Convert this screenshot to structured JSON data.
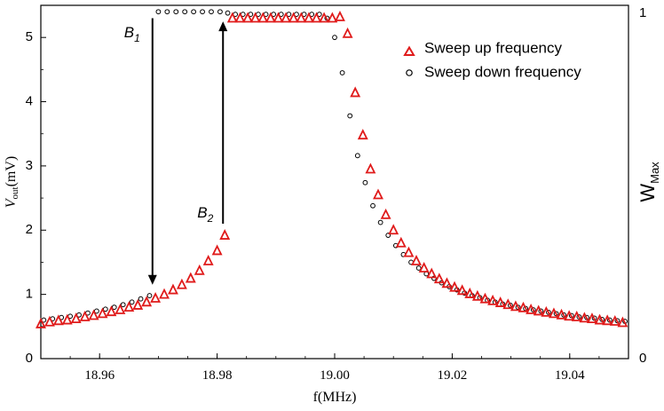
{
  "chart_data": {
    "type": "scatter",
    "xlabel": "f(MHz)",
    "ylabel_left": {
      "main": "V",
      "sub": "out",
      "unit": "(mV)"
    },
    "ylabel_right": {
      "main": "W",
      "sub": "Max"
    },
    "xlim": [
      18.95,
      19.05
    ],
    "ylim": [
      0,
      5.5
    ],
    "x_ticks": [
      18.96,
      18.98,
      19.0,
      19.02,
      19.04
    ],
    "x_tick_labels": [
      "18.96",
      "18.98",
      "19.00",
      "19.02",
      "19.04"
    ],
    "y_ticks": [
      0,
      1,
      2,
      3,
      4,
      5
    ],
    "y_tick_labels": [
      "0",
      "1",
      "2",
      "3",
      "4",
      "5"
    ],
    "right_ticks": [
      0,
      1
    ],
    "right_tick_labels": [
      "0",
      "1"
    ],
    "legend": {
      "position": "top-right",
      "entries": [
        "Sweep up frequency",
        "Sweep down frequency"
      ]
    },
    "annotations": [
      {
        "id": "B1",
        "letter": "B",
        "sub": "1",
        "arrow": "down",
        "x": 18.969,
        "y_from": 5.3,
        "y_to": 1.15
      },
      {
        "id": "B2",
        "letter": "B",
        "sub": "2",
        "arrow": "up",
        "x": 18.981,
        "y_from": 2.1,
        "y_to": 5.25
      }
    ],
    "series": [
      {
        "name": "Sweep up frequency",
        "marker": "triangle",
        "color": "#e01b1b",
        "x": [
          18.95,
          18.9515,
          18.953,
          18.9545,
          18.956,
          18.9575,
          18.959,
          18.9605,
          18.962,
          18.9635,
          18.965,
          18.9665,
          18.968,
          18.9695,
          18.971,
          18.9725,
          18.974,
          18.9755,
          18.977,
          18.9785,
          18.98,
          18.9813,
          18.9826,
          18.9839,
          18.9852,
          18.9865,
          18.9878,
          18.9891,
          18.9904,
          18.9917,
          18.993,
          18.9943,
          18.9956,
          18.9969,
          18.9982,
          18.9996,
          19.0009,
          19.0022,
          19.0035,
          19.0048,
          19.0061,
          19.0074,
          19.0087,
          19.01,
          19.0113,
          19.0126,
          19.0139,
          19.0152,
          19.0165,
          19.0178,
          19.0191,
          19.0204,
          19.0217,
          19.023,
          19.0243,
          19.0256,
          19.0269,
          19.0282,
          19.0295,
          19.0308,
          19.0321,
          19.0334,
          19.0347,
          19.036,
          19.0373,
          19.0386,
          19.0399,
          19.0412,
          19.0425,
          19.0438,
          19.0451,
          19.0464,
          19.0477,
          19.049
        ],
        "y": [
          0.54,
          0.57,
          0.59,
          0.6,
          0.62,
          0.65,
          0.67,
          0.7,
          0.73,
          0.76,
          0.8,
          0.83,
          0.88,
          0.94,
          1.0,
          1.07,
          1.15,
          1.25,
          1.37,
          1.52,
          1.68,
          1.92,
          5.3,
          5.3,
          5.3,
          5.3,
          5.3,
          5.3,
          5.3,
          5.3,
          5.3,
          5.3,
          5.3,
          5.3,
          5.3,
          5.3,
          5.32,
          5.06,
          4.14,
          3.48,
          2.95,
          2.55,
          2.24,
          2.0,
          1.8,
          1.65,
          1.52,
          1.41,
          1.32,
          1.24,
          1.17,
          1.11,
          1.06,
          1.01,
          0.97,
          0.93,
          0.9,
          0.87,
          0.84,
          0.81,
          0.79,
          0.76,
          0.74,
          0.72,
          0.7,
          0.68,
          0.66,
          0.65,
          0.63,
          0.62,
          0.6,
          0.59,
          0.58,
          0.56
        ]
      },
      {
        "name": "Sweep down frequency",
        "marker": "circle",
        "color": "#000000",
        "x": [
          18.9505,
          18.952,
          18.9535,
          18.955,
          18.9565,
          18.958,
          18.9595,
          18.961,
          18.9625,
          18.964,
          18.9655,
          18.967,
          18.9685,
          18.97,
          18.9715,
          18.973,
          18.9745,
          18.976,
          18.9775,
          18.979,
          18.9805,
          18.9818,
          18.9831,
          18.9844,
          18.9857,
          18.987,
          18.9883,
          18.9896,
          18.9909,
          18.9922,
          18.9935,
          18.9948,
          18.9961,
          18.9974,
          18.9987,
          19.0,
          19.0013,
          19.0026,
          19.0039,
          19.0052,
          19.0065,
          19.0078,
          19.0091,
          19.0104,
          19.0117,
          19.013,
          19.0143,
          19.0156,
          19.0169,
          19.0182,
          19.0195,
          19.0208,
          19.0221,
          19.0234,
          19.0247,
          19.026,
          19.0273,
          19.0286,
          19.0299,
          19.0312,
          19.0325,
          19.0338,
          19.0351,
          19.0364,
          19.0377,
          19.039,
          19.0403,
          19.0416,
          19.0429,
          19.0442,
          19.0455,
          19.0468,
          19.0481,
          19.0494
        ],
        "y": [
          0.6,
          0.62,
          0.64,
          0.66,
          0.68,
          0.71,
          0.74,
          0.77,
          0.8,
          0.84,
          0.88,
          0.93,
          0.98,
          5.4,
          5.4,
          5.4,
          5.4,
          5.4,
          5.4,
          5.4,
          5.4,
          5.38,
          5.36,
          5.36,
          5.36,
          5.36,
          5.36,
          5.36,
          5.36,
          5.36,
          5.36,
          5.36,
          5.36,
          5.36,
          5.3,
          5.0,
          4.45,
          3.78,
          3.16,
          2.74,
          2.38,
          2.12,
          1.92,
          1.76,
          1.62,
          1.5,
          1.41,
          1.32,
          1.25,
          1.18,
          1.12,
          1.07,
          1.02,
          0.98,
          0.95,
          0.91,
          0.88,
          0.85,
          0.83,
          0.8,
          0.78,
          0.76,
          0.74,
          0.72,
          0.7,
          0.68,
          0.67,
          0.65,
          0.64,
          0.63,
          0.61,
          0.6,
          0.59,
          0.58
        ]
      }
    ]
  }
}
